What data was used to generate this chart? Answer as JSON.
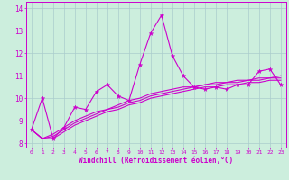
{
  "xlabel": "Windchill (Refroidissement éolien,°C)",
  "ylabel": "",
  "background_color": "#cceedd",
  "line_color": "#cc00cc",
  "grid_color": "#aacccc",
  "text_color": "#cc00cc",
  "axis_color": "#cc00cc",
  "xlim": [
    -0.5,
    23.5
  ],
  "ylim": [
    7.8,
    14.3
  ],
  "yticks": [
    8,
    9,
    10,
    11,
    12,
    13,
    14
  ],
  "xticks": [
    0,
    1,
    2,
    3,
    4,
    5,
    6,
    7,
    8,
    9,
    10,
    11,
    12,
    13,
    14,
    15,
    16,
    17,
    18,
    19,
    20,
    21,
    22,
    23
  ],
  "series": [
    [
      8.6,
      10.0,
      8.2,
      8.7,
      9.6,
      9.5,
      10.3,
      10.6,
      10.1,
      9.9,
      11.5,
      12.9,
      13.7,
      11.9,
      11.0,
      10.5,
      10.4,
      10.5,
      10.4,
      10.6,
      10.6,
      11.2,
      11.3,
      10.6
    ],
    [
      8.6,
      8.2,
      8.2,
      8.5,
      8.8,
      9.0,
      9.2,
      9.4,
      9.5,
      9.7,
      9.8,
      10.0,
      10.1,
      10.2,
      10.3,
      10.4,
      10.5,
      10.5,
      10.6,
      10.6,
      10.7,
      10.7,
      10.8,
      10.8
    ],
    [
      8.6,
      8.2,
      8.3,
      8.6,
      8.9,
      9.1,
      9.3,
      9.5,
      9.6,
      9.8,
      9.9,
      10.1,
      10.2,
      10.3,
      10.4,
      10.5,
      10.6,
      10.6,
      10.7,
      10.7,
      10.8,
      10.8,
      10.9,
      10.9
    ],
    [
      8.6,
      8.2,
      8.4,
      8.7,
      9.0,
      9.2,
      9.4,
      9.5,
      9.7,
      9.9,
      10.0,
      10.2,
      10.3,
      10.4,
      10.5,
      10.5,
      10.6,
      10.7,
      10.7,
      10.8,
      10.8,
      10.9,
      10.9,
      11.0
    ]
  ],
  "marker": "*",
  "markersize": 3.5,
  "linewidth": 0.8,
  "xtick_fontsize": 4.5,
  "ytick_fontsize": 5.5,
  "xlabel_fontsize": 5.5
}
